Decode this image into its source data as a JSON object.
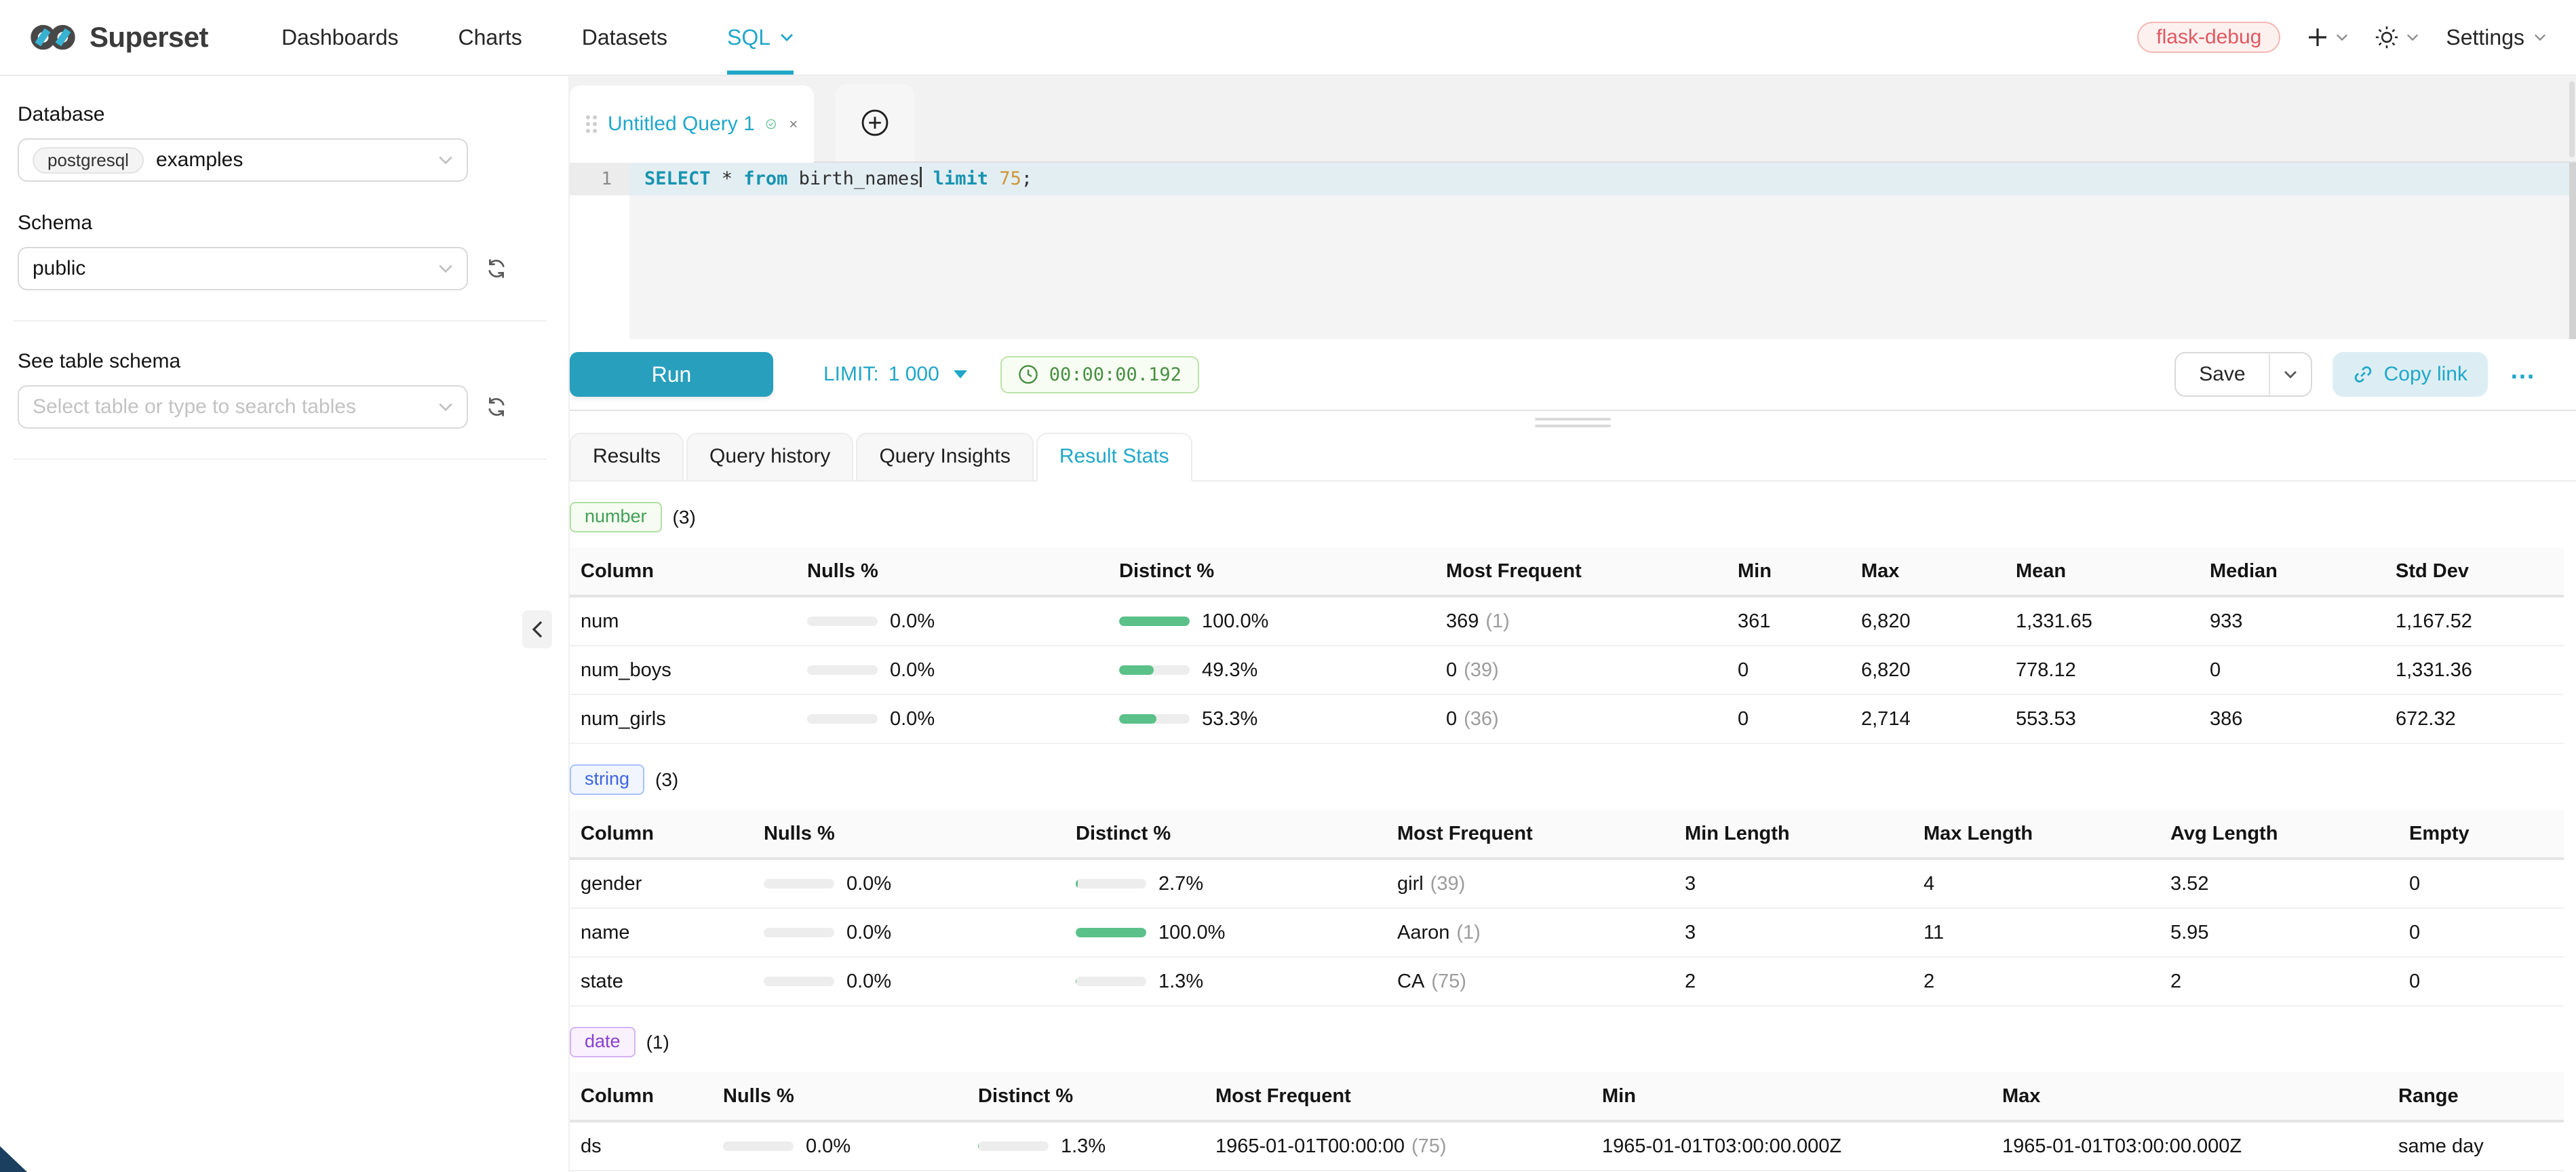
{
  "colors": {
    "accent": "#20a7c9",
    "success": "#5ac189",
    "run": "#289fbd",
    "kw": "#1794b0",
    "num": "#cf9536",
    "badge_red": "#e0575f",
    "tag_green": "#41a058",
    "tag_blue": "#3e64de",
    "tag_purple": "#8a3fd0",
    "timer_green": "#478f42"
  },
  "nav": {
    "brand": "Superset",
    "items": [
      {
        "label": "Dashboards"
      },
      {
        "label": "Charts"
      },
      {
        "label": "Datasets"
      },
      {
        "label": "SQL"
      }
    ],
    "env_badge": "flask-debug",
    "settings": "Settings"
  },
  "sidebar": {
    "database": {
      "label": "Database",
      "engine_tag": "postgresql",
      "value": "examples"
    },
    "schema": {
      "label": "Schema",
      "value": "public"
    },
    "table": {
      "label": "See table schema",
      "placeholder": "Select table or type to search tables"
    }
  },
  "query_tab": {
    "title": "Untitled Query 1"
  },
  "editor": {
    "line_number": "1",
    "sql": {
      "k1": "SELECT",
      "p1": " * ",
      "k2": "from",
      "p2": " birth_names",
      "k3": " limit",
      "n1": " 75",
      "p3": ";"
    }
  },
  "toolbar": {
    "run": "Run",
    "limit_label": "LIMIT:",
    "limit_value": "1 000",
    "timer": "00:00:00.192",
    "save": "Save",
    "copy_link": "Copy link",
    "more": "…"
  },
  "results": {
    "tabs": [
      {
        "label": "Results"
      },
      {
        "label": "Query history"
      },
      {
        "label": "Query Insights"
      },
      {
        "label": "Result Stats"
      }
    ],
    "active_tab": "Result Stats"
  },
  "stats": {
    "number": {
      "tag": "number",
      "count": "(3)",
      "headers": [
        "Column",
        "Nulls %",
        "Distinct %",
        "Most Frequent",
        "Min",
        "Max",
        "Mean",
        "Median",
        "Std Dev"
      ],
      "rows": [
        {
          "column": "num",
          "nulls": "0.0%",
          "nulls_fill": 0,
          "distinct": "100.0%",
          "distinct_fill": 100,
          "mf_value": "369",
          "mf_count": "(1)",
          "min": "361",
          "max": "6,820",
          "mean": "1,331.65",
          "median": "933",
          "stddev": "1,167.52"
        },
        {
          "column": "num_boys",
          "nulls": "0.0%",
          "nulls_fill": 0,
          "distinct": "49.3%",
          "distinct_fill": 49.3,
          "mf_value": "0",
          "mf_count": "(39)",
          "min": "0",
          "max": "6,820",
          "mean": "778.12",
          "median": "0",
          "stddev": "1,331.36"
        },
        {
          "column": "num_girls",
          "nulls": "0.0%",
          "nulls_fill": 0,
          "distinct": "53.3%",
          "distinct_fill": 53.3,
          "mf_value": "0",
          "mf_count": "(36)",
          "min": "0",
          "max": "2,714",
          "mean": "553.53",
          "median": "386",
          "stddev": "672.32"
        }
      ]
    },
    "string": {
      "tag": "string",
      "count": "(3)",
      "headers": [
        "Column",
        "Nulls %",
        "Distinct %",
        "Most Frequent",
        "Min Length",
        "Max Length",
        "Avg Length",
        "Empty"
      ],
      "rows": [
        {
          "column": "gender",
          "nulls": "0.0%",
          "nulls_fill": 0,
          "distinct": "2.7%",
          "distinct_fill": 2.7,
          "mf_value": "girl",
          "mf_count": "(39)",
          "min_len": "3",
          "max_len": "4",
          "avg_len": "3.52",
          "empty": "0"
        },
        {
          "column": "name",
          "nulls": "0.0%",
          "nulls_fill": 0,
          "distinct": "100.0%",
          "distinct_fill": 100,
          "mf_value": "Aaron",
          "mf_count": "(1)",
          "min_len": "3",
          "max_len": "11",
          "avg_len": "5.95",
          "empty": "0"
        },
        {
          "column": "state",
          "nulls": "0.0%",
          "nulls_fill": 0,
          "distinct": "1.3%",
          "distinct_fill": 1.3,
          "mf_value": "CA",
          "mf_count": "(75)",
          "min_len": "2",
          "max_len": "2",
          "avg_len": "2",
          "empty": "0"
        }
      ]
    },
    "date": {
      "tag": "date",
      "count": "(1)",
      "headers": [
        "Column",
        "Nulls %",
        "Distinct %",
        "Most Frequent",
        "Min",
        "Max",
        "Range"
      ],
      "rows": [
        {
          "column": "ds",
          "nulls": "0.0%",
          "nulls_fill": 0,
          "distinct": "1.3%",
          "distinct_fill": 1.3,
          "mf_value": "1965-01-01T00:00:00",
          "mf_count": "(75)",
          "min": "1965-01-01T03:00:00.000Z",
          "max": "1965-01-01T03:00:00.000Z",
          "range": "same day"
        }
      ]
    }
  }
}
